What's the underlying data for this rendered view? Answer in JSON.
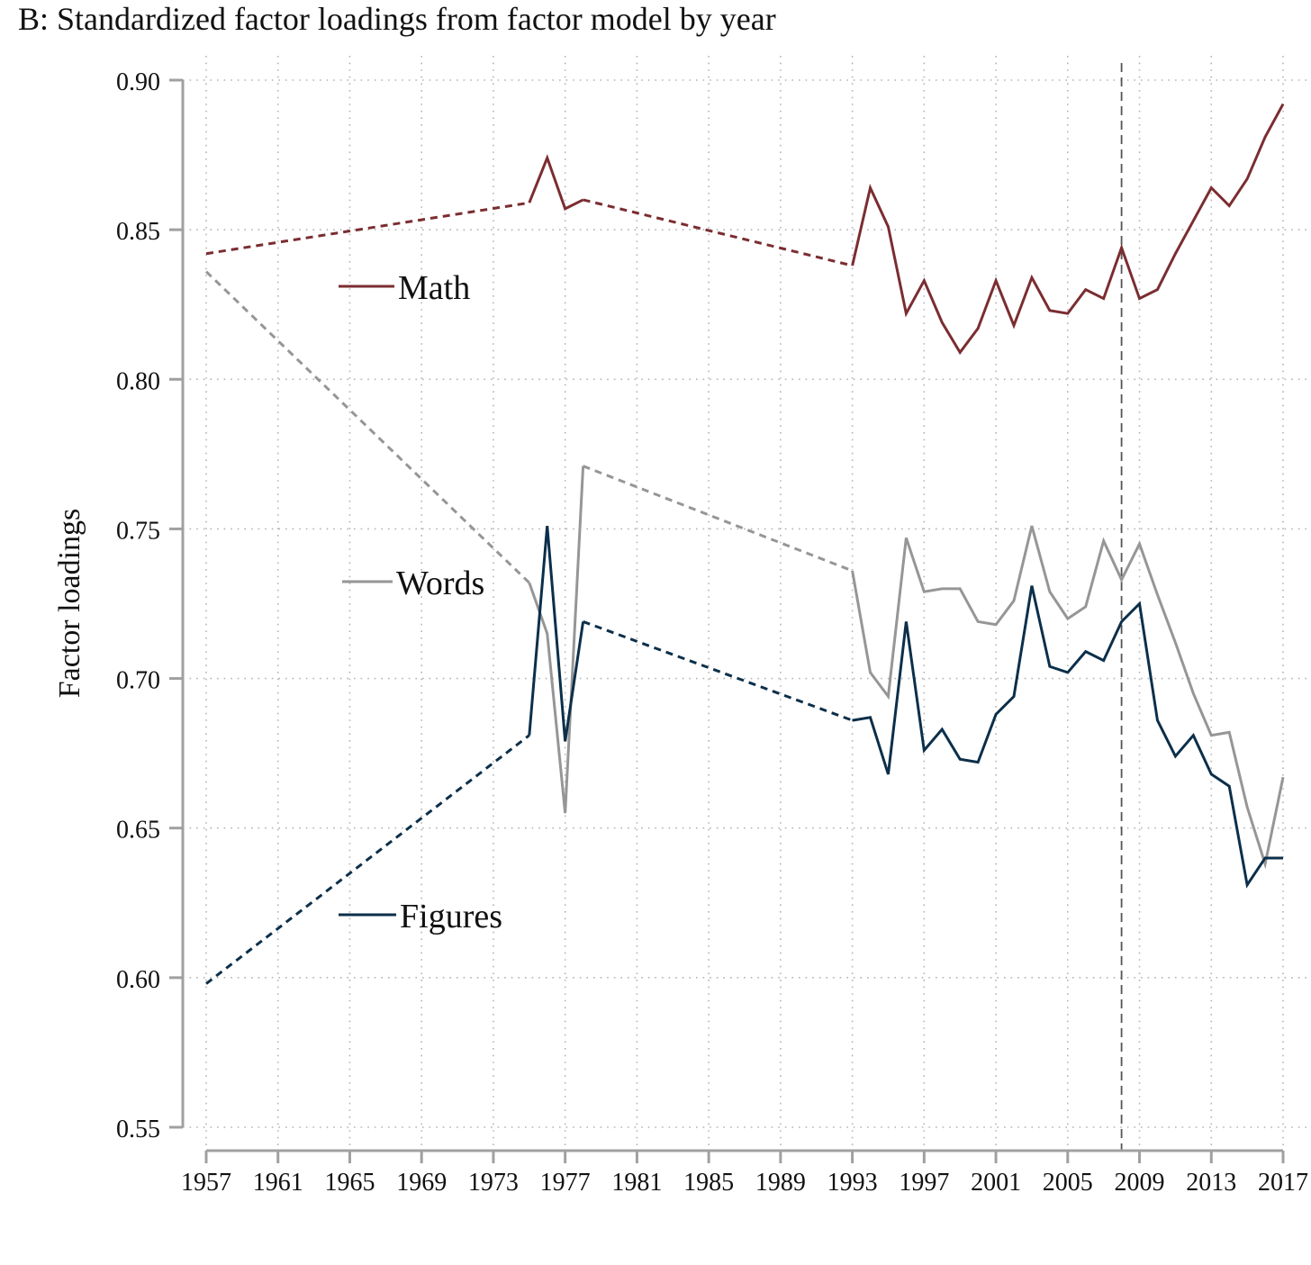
{
  "chart_data": {
    "type": "line",
    "title": "B: Standardized factor loadings from factor model by year",
    "xlabel": "",
    "ylabel": "Factor loadings",
    "xlim": [
      1957,
      2017
    ],
    "ylim": [
      0.55,
      0.9
    ],
    "x_ticks": [
      "1957",
      "1961",
      "1965",
      "1969",
      "1973",
      "1977",
      "1981",
      "1985",
      "1989",
      "1993",
      "1997",
      "2001",
      "2005",
      "2009",
      "2013",
      "2017"
    ],
    "y_ticks": [
      "0.90",
      "0.85",
      "0.80",
      "0.75",
      "0.70",
      "0.65",
      "0.60",
      "0.55"
    ],
    "grid": true,
    "reference_line_x": 2008,
    "colors": {
      "math": "#7b2d31",
      "words": "#969696",
      "figures": "#0c2f4a",
      "axis": "#a0a0a0",
      "grid": "#b4b4b4",
      "ref": "#555555"
    },
    "series": [
      {
        "name": "Math",
        "color": "#7b2d31",
        "points": [
          [
            1957,
            0.842
          ],
          [
            1975,
            0.859
          ],
          [
            1976,
            0.874
          ],
          [
            1977,
            0.857
          ],
          [
            1978,
            0.86
          ],
          [
            1993,
            0.838
          ],
          [
            1994,
            0.864
          ],
          [
            1995,
            0.851
          ],
          [
            1996,
            0.822
          ],
          [
            1997,
            0.833
          ],
          [
            1998,
            0.819
          ],
          [
            1999,
            0.809
          ],
          [
            2000,
            0.817
          ],
          [
            2001,
            0.833
          ],
          [
            2002,
            0.818
          ],
          [
            2003,
            0.834
          ],
          [
            2004,
            0.823
          ],
          [
            2005,
            0.822
          ],
          [
            2006,
            0.83
          ],
          [
            2007,
            0.827
          ],
          [
            2008,
            0.844
          ],
          [
            2009,
            0.827
          ],
          [
            2010,
            0.83
          ],
          [
            2011,
            0.842
          ],
          [
            2012,
            0.853
          ],
          [
            2013,
            0.864
          ],
          [
            2014,
            0.858
          ],
          [
            2015,
            0.867
          ],
          [
            2016,
            0.881
          ],
          [
            2017,
            0.892
          ]
        ]
      },
      {
        "name": "Words",
        "color": "#969696",
        "points": [
          [
            1957,
            0.836
          ],
          [
            1975,
            0.732
          ],
          [
            1976,
            0.715
          ],
          [
            1977,
            0.655
          ],
          [
            1978,
            0.771
          ],
          [
            1993,
            0.736
          ],
          [
            1994,
            0.702
          ],
          [
            1995,
            0.694
          ],
          [
            1996,
            0.747
          ],
          [
            1997,
            0.729
          ],
          [
            1998,
            0.73
          ],
          [
            1999,
            0.73
          ],
          [
            2000,
            0.719
          ],
          [
            2001,
            0.718
          ],
          [
            2002,
            0.726
          ],
          [
            2003,
            0.751
          ],
          [
            2004,
            0.729
          ],
          [
            2005,
            0.72
          ],
          [
            2006,
            0.724
          ],
          [
            2007,
            0.746
          ],
          [
            2008,
            0.733
          ],
          [
            2009,
            0.745
          ],
          [
            2010,
            0.728
          ],
          [
            2011,
            0.712
          ],
          [
            2012,
            0.695
          ],
          [
            2013,
            0.681
          ],
          [
            2014,
            0.682
          ],
          [
            2015,
            0.657
          ],
          [
            2016,
            0.638
          ],
          [
            2017,
            0.667
          ]
        ]
      },
      {
        "name": "Figures",
        "color": "#0c2f4a",
        "points": [
          [
            1957,
            0.598
          ],
          [
            1975,
            0.681
          ],
          [
            1976,
            0.751
          ],
          [
            1977,
            0.679
          ],
          [
            1978,
            0.719
          ],
          [
            1993,
            0.686
          ],
          [
            1994,
            0.687
          ],
          [
            1995,
            0.668
          ],
          [
            1996,
            0.719
          ],
          [
            1997,
            0.676
          ],
          [
            1998,
            0.683
          ],
          [
            1999,
            0.673
          ],
          [
            2000,
            0.672
          ],
          [
            2001,
            0.688
          ],
          [
            2002,
            0.694
          ],
          [
            2003,
            0.731
          ],
          [
            2004,
            0.704
          ],
          [
            2005,
            0.702
          ],
          [
            2006,
            0.709
          ],
          [
            2007,
            0.706
          ],
          [
            2008,
            0.719
          ],
          [
            2009,
            0.725
          ],
          [
            2010,
            0.686
          ],
          [
            2011,
            0.674
          ],
          [
            2012,
            0.681
          ],
          [
            2013,
            0.668
          ],
          [
            2014,
            0.664
          ],
          [
            2015,
            0.631
          ],
          [
            2016,
            0.64
          ],
          [
            2017,
            0.64
          ]
        ]
      }
    ]
  }
}
